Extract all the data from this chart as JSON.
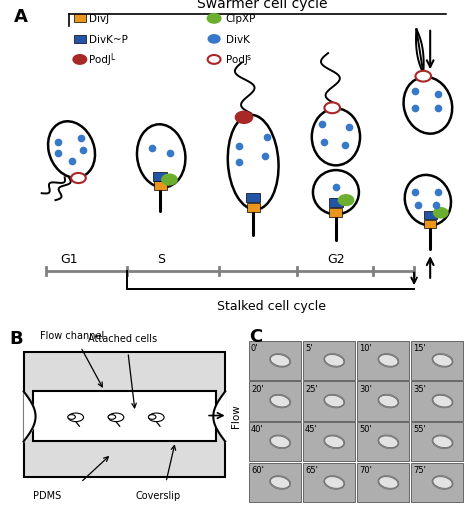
{
  "title_A": "Swarmer cell cycle",
  "stalked_label": "Stalked cell cycle",
  "phase_labels": [
    "G1",
    "S",
    "G2"
  ],
  "divk_blue": "#3878C8",
  "divj_orange": "#E8961E",
  "divkp_blue": "#2255A8",
  "clpxp_green": "#6BAE30",
  "podj_red": "#A82828",
  "bg_color": "#ffffff",
  "time_labels": [
    "0'",
    "5'",
    "10'",
    "15'",
    "20'",
    "25'",
    "30'",
    "35'",
    "40'",
    "45'",
    "50'",
    "55'",
    "60'",
    "65'",
    "70'",
    "75'"
  ]
}
